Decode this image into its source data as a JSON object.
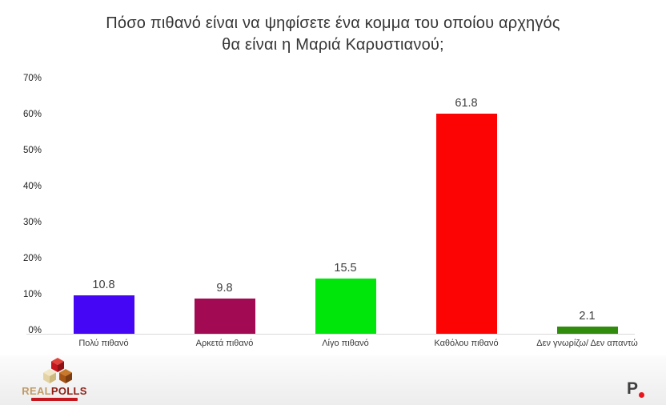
{
  "title": {
    "line1": "Πόσο πιθανό είναι να ψηφίσετε ένα κομμα του οποίου αρχηγός",
    "line2": "θα είναι η Μαριά Καρυστιανού;"
  },
  "chart_data": {
    "type": "bar",
    "title": "Πόσο πιθανό είναι να ψηφίσετε ένα κομμα του οποίου αρχηγός θα είναι η Μαριά Καρυστιανού;",
    "categories": [
      "Πολύ πιθανό",
      "Αρκετά πιθανό",
      "Λίγο πιθανό",
      "Καθόλου πιθανό",
      "Δεν γνωρίζω/ Δεν απαντώ"
    ],
    "values": [
      10.8,
      9.8,
      15.5,
      61.8,
      2.1
    ],
    "value_labels": [
      "10.8",
      "9.8",
      "15.5",
      "61.8",
      "2.1"
    ],
    "bar_colors": [
      "#4506f5",
      "#a30a54",
      "#00e60b",
      "#fc0404",
      "#318c0e"
    ],
    "xlabel": "",
    "ylabel": "",
    "ylim": [
      0,
      70
    ],
    "ytick_values": [
      0,
      10,
      20,
      30,
      40,
      50,
      60,
      70
    ],
    "ytick_labels": [
      "0%",
      "10%",
      "20%",
      "30%",
      "40%",
      "50%",
      "60%",
      "70%"
    ],
    "grid": false,
    "legend": "none"
  },
  "branding": {
    "realpolls": {
      "name_part1": "REAL",
      "name_part2": "POLLS",
      "cube_red": "#c5161d",
      "cube_cream": "#e3d3a4",
      "cube_brown": "#a85618"
    },
    "p_mark": {
      "letter": "P",
      "dot_color": "#e8141e"
    }
  },
  "colors": {
    "axis_line": "#d9d9d9",
    "title_text": "#353535",
    "footer_bg": "#f1f1f1"
  }
}
